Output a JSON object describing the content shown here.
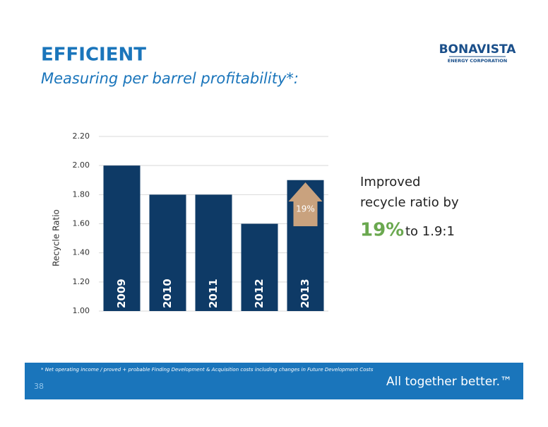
{
  "header": {
    "title": "EFFICIENT",
    "subtitle": "Measuring per barrel profitability*:"
  },
  "logo": {
    "name": "BONAVISTA",
    "tagline": "ENERGY CORPORATION"
  },
  "chart_data": {
    "type": "bar",
    "y_label": "Recycle Ratio",
    "categories": [
      "2009",
      "2010",
      "2011",
      "2012",
      "2013"
    ],
    "values": [
      2.0,
      1.8,
      1.8,
      1.6,
      1.9
    ],
    "color": "#0e3a66",
    "ylim": [
      1.0,
      2.2
    ],
    "yticks": [
      {
        "value": 1.0,
        "label": "1.00"
      },
      {
        "value": 1.2,
        "label": "1.20"
      },
      {
        "value": 1.4,
        "label": "1.40"
      },
      {
        "value": 1.6,
        "label": "1.60"
      },
      {
        "value": 1.8,
        "label": "1.80"
      },
      {
        "value": 2.0,
        "label": "2.00"
      },
      {
        "value": 2.2,
        "label": "2.20"
      }
    ],
    "grid": true,
    "annotation": "19%"
  },
  "callout": {
    "line1": "Improved",
    "line2": "recycle ratio by",
    "highlight": "19%",
    "rest": "to 1.9:1"
  },
  "footer": {
    "footnote": "* Net operating income / proved + probable Finding Development & Acquisition costs including changes in Future Development Costs",
    "page_number": "38",
    "slogan": "All together better.™"
  }
}
